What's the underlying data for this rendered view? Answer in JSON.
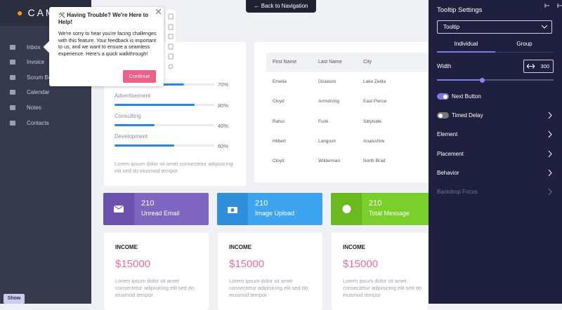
{
  "sidebar": {
    "logo": "CAMP",
    "nav": [
      "Inbox",
      "Invoice",
      "Scrum Board",
      "Calendar",
      "Notes",
      "Contacts"
    ],
    "show_button": "Show"
  },
  "top_button": "Back to Navigation",
  "tooltip": {
    "title": "🛠️ Having Trouble? We're Here to Help!",
    "body": "We're sorry to hear you're facing challenges with this feature. Your feedback is important to us, and we want to ensure a seamless experience. Here's a quick walkthrough!",
    "button": "Continue"
  },
  "progress": {
    "items": [
      {
        "value": 70,
        "label": "70%"
      },
      {
        "name": "Advertisement",
        "value": 80,
        "label": "80%"
      },
      {
        "name": "Consulting",
        "value": 40,
        "label": "40%"
      },
      {
        "name": "Development",
        "value": 60,
        "label": "60%"
      }
    ],
    "text": "Lorem ipsum dolor sit amet consectetur adipisicing elit sed do eiusmod tempor"
  },
  "table": {
    "headers": [
      "First Name",
      "Last Name",
      "City"
    ],
    "rows": [
      [
        "Emelia",
        "Gislason",
        "Lake Zelda"
      ],
      [
        "Cloyd",
        "Armstrong",
        "East Pierce"
      ],
      [
        "Rahul",
        "Funk",
        "Sibylside"
      ],
      [
        "Hilbert",
        "Langosh",
        "Anaisshire"
      ],
      [
        "Cloyd",
        "Wilderman",
        "North Brad"
      ]
    ]
  },
  "stats": [
    {
      "value": 210,
      "label": "Unread Email"
    },
    {
      "value": 210,
      "label": "Image Upload"
    },
    {
      "value": 210,
      "label": "Total Message"
    }
  ],
  "income": [
    {
      "title": "INCOME",
      "amount": "$15000",
      "text": "Lorem ipsum dolor sit amet consectetur adipisicing elit sed do eiusmod tempor"
    },
    {
      "title": "INCOME",
      "amount": "$15000",
      "text": "Lorem ipsum dolor sit amet consectetur adipisicing elit sed do eiusmod tempor"
    },
    {
      "title": "INCOME",
      "amount": "$15000",
      "text": "Lorem ipsum dolor sit amet consectetur adipisicing elit sed do eiusmod tempor"
    }
  ],
  "settings": {
    "title": "Tooltip Settings",
    "select": "Tooltip",
    "tabs": [
      "Individual",
      "Group"
    ],
    "width_label": "Width",
    "width_value": 300,
    "options": [
      "Next Button",
      "Timed Delay",
      "Element",
      "Placement",
      "Behavior",
      "Backdrop Focus"
    ]
  }
}
